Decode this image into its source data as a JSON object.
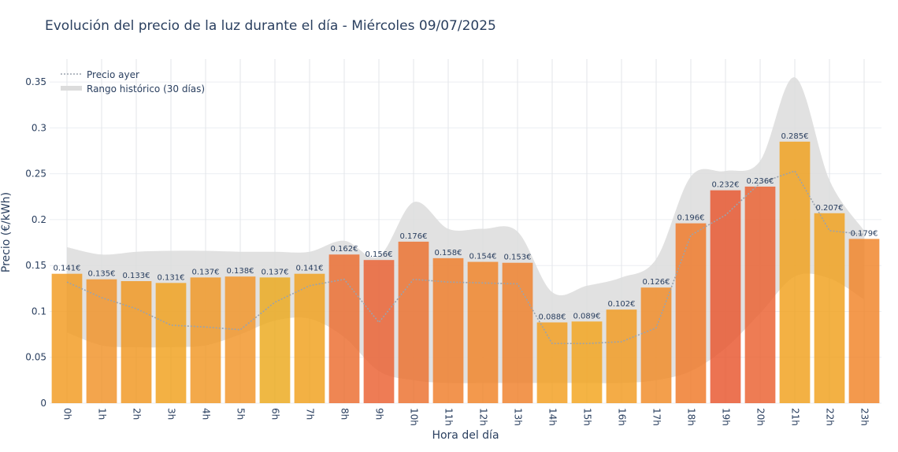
{
  "chart_data": {
    "type": "bar",
    "title": "Evolución del precio de la luz durante el día - Miércoles 09/07/2025",
    "xlabel": "Hora del día",
    "ylabel": "Precio (€/kWh)",
    "ylim": [
      0,
      0.375
    ],
    "yticks": [
      0,
      0.05,
      0.1,
      0.15,
      0.2,
      0.25,
      0.3,
      0.35
    ],
    "ytick_labels": [
      "0",
      "0.05",
      "0.1",
      "0.15",
      "0.2",
      "0.25",
      "0.3",
      "0.35"
    ],
    "grid": true,
    "legend_position": "top-left",
    "categories": [
      "0h",
      "1h",
      "2h",
      "3h",
      "4h",
      "5h",
      "6h",
      "7h",
      "8h",
      "9h",
      "10h",
      "11h",
      "12h",
      "13h",
      "14h",
      "15h",
      "16h",
      "17h",
      "18h",
      "19h",
      "20h",
      "21h",
      "22h",
      "23h"
    ],
    "values": [
      0.141,
      0.135,
      0.133,
      0.131,
      0.137,
      0.138,
      0.137,
      0.141,
      0.162,
      0.156,
      0.176,
      0.158,
      0.154,
      0.153,
      0.088,
      0.089,
      0.102,
      0.126,
      0.196,
      0.232,
      0.236,
      0.285,
      0.207,
      0.179
    ],
    "value_labels": [
      "0.141€",
      "0.135€",
      "0.133€",
      "0.131€",
      "0.137€",
      "0.138€",
      "0.137€",
      "0.141€",
      "0.162€",
      "0.156€",
      "0.176€",
      "0.158€",
      "0.154€",
      "0.153€",
      "0.088€",
      "0.089€",
      "0.102€",
      "0.126€",
      "0.196€",
      "0.232€",
      "0.236€",
      "0.285€",
      "0.207€",
      "0.179€"
    ],
    "bar_colors": [
      "#f29a1f",
      "#f09126",
      "#f0961f",
      "#f0a01b",
      "#f09622",
      "#f29426",
      "#eca81b",
      "#f0a01b",
      "#ec6b2d",
      "#ea5f30",
      "#ec6f2c",
      "#ef7c28",
      "#f08226",
      "#ef7f28",
      "#f39d1d",
      "#f3a41b",
      "#f29a1f",
      "#f08a24",
      "#ef7726",
      "#e8542c",
      "#ea5f2e",
      "#f0a01b",
      "#f0a01b",
      "#f08226"
    ],
    "series": [
      {
        "name": "Precio ayer",
        "type": "line",
        "style": "dotted",
        "color": "#9aa3ad",
        "values": [
          0.132,
          0.115,
          0.103,
          0.085,
          0.083,
          0.08,
          0.11,
          0.128,
          0.135,
          0.088,
          0.135,
          0.132,
          0.131,
          0.13,
          0.065,
          0.065,
          0.067,
          0.082,
          0.183,
          0.205,
          0.24,
          0.253,
          0.188,
          0.184
        ]
      },
      {
        "name": "Rango histórico (30 días)",
        "type": "band",
        "color": "#dcdcdc",
        "upper": [
          0.17,
          0.162,
          0.165,
          0.166,
          0.166,
          0.165,
          0.165,
          0.165,
          0.177,
          0.16,
          0.219,
          0.19,
          0.19,
          0.187,
          0.121,
          0.128,
          0.137,
          0.157,
          0.247,
          0.253,
          0.264,
          0.355,
          0.243,
          0.188
        ],
        "lower": [
          0.077,
          0.063,
          0.061,
          0.061,
          0.063,
          0.075,
          0.09,
          0.092,
          0.072,
          0.035,
          0.025,
          0.022,
          0.022,
          0.022,
          0.022,
          0.022,
          0.022,
          0.025,
          0.035,
          0.06,
          0.098,
          0.138,
          0.136,
          0.113
        ]
      }
    ]
  }
}
